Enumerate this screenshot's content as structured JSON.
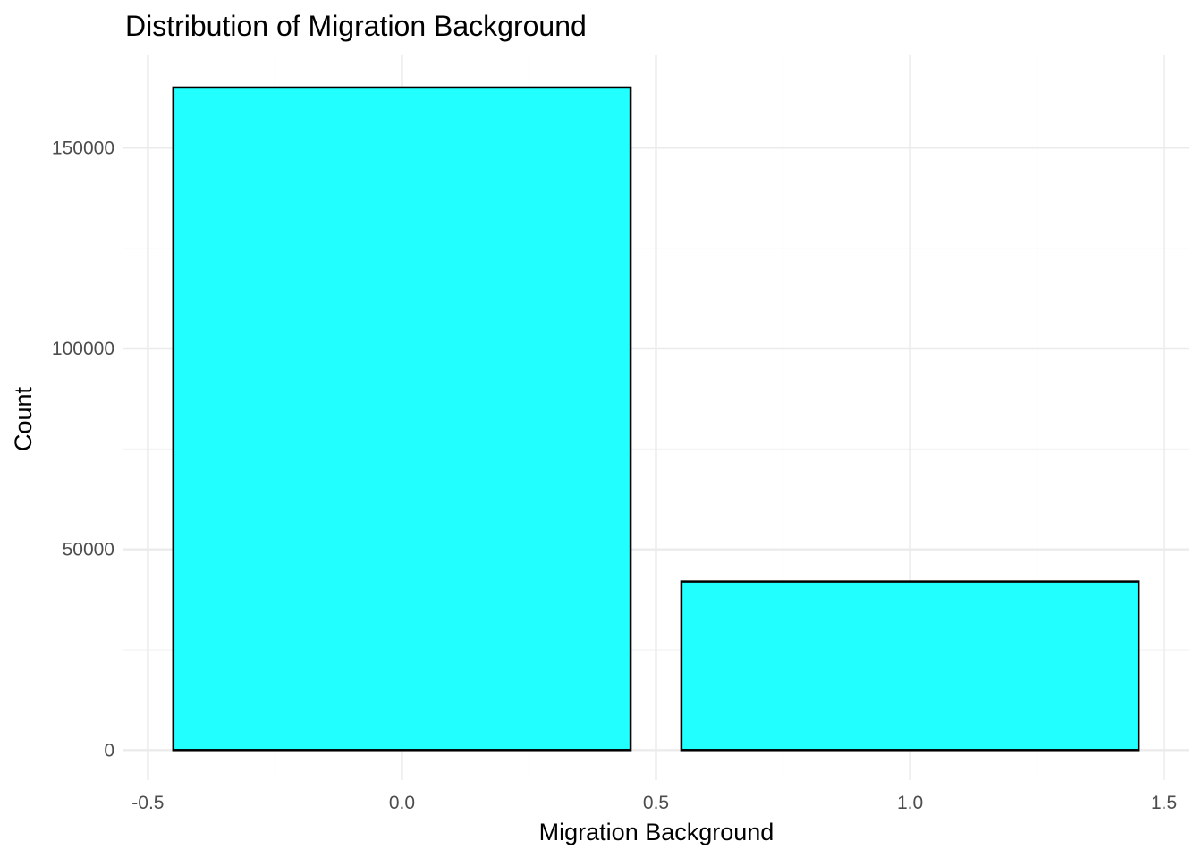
{
  "chart_data": {
    "type": "bar",
    "title": "Distribution of Migration Background",
    "xlabel": "Migration Background",
    "ylabel": "Count",
    "categories": [
      0,
      1
    ],
    "values": [
      165000,
      42000
    ],
    "bar_width": 0.9,
    "xlim": [
      -0.55,
      1.55
    ],
    "ylim": [
      -7500,
      173000
    ],
    "x_ticks": [
      "-0.5",
      "0.0",
      "0.5",
      "1.0",
      "1.5"
    ],
    "x_tick_values": [
      -0.5,
      0,
      0.5,
      1.0,
      1.5
    ],
    "x_minor_tick_values": [
      -0.25,
      0.25,
      0.75,
      1.25
    ],
    "y_ticks": [
      "0",
      "50000",
      "100000",
      "150000"
    ],
    "y_tick_values": [
      0,
      50000,
      100000,
      150000
    ],
    "y_minor_tick_values": [
      25000,
      75000,
      125000
    ],
    "grid": true,
    "legend": "none",
    "colors": {
      "bar_fill": "#22FFFF",
      "bar_stroke": "#000000",
      "grid_major": "#EBEBEB",
      "grid_minor": "#F2F2F2"
    }
  }
}
